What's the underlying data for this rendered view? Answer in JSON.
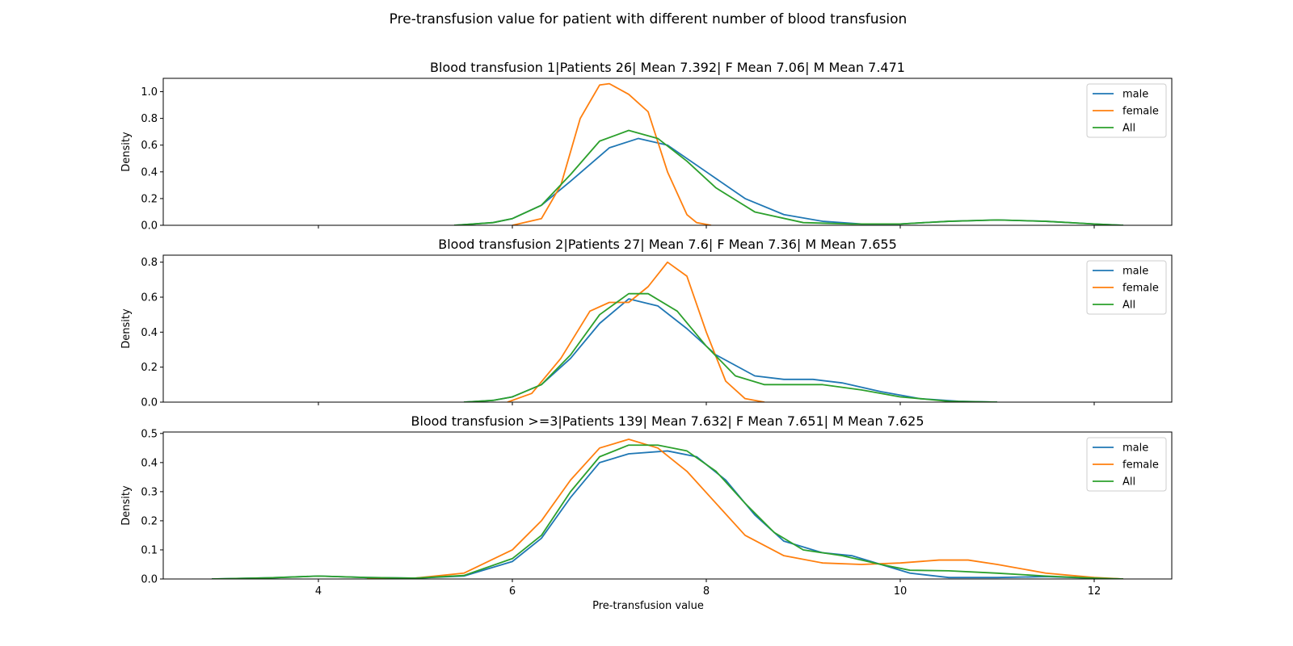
{
  "figure": {
    "suptitle": "Pre-transfusion value for patient with different number of blood transfusion",
    "xlabel": "Pre-transfusion value"
  },
  "colors": {
    "male": "#1f77b4",
    "female": "#ff7f0e",
    "All": "#2ca02c"
  },
  "chart_data": [
    {
      "type": "line",
      "title": "Blood transfusion 1|Patients 26| Mean 7.392| F Mean 7.06| M Mean 7.471",
      "xlabel": "",
      "ylabel": "Density",
      "xlim": [
        2.4,
        12.8
      ],
      "xticks": [
        4,
        6,
        8,
        10,
        12
      ],
      "show_xtick_labels": false,
      "ylim": [
        0,
        1.1
      ],
      "yticks": [
        0.0,
        0.2,
        0.4,
        0.6,
        0.8,
        1.0
      ],
      "ytick_labels": [
        "0.0",
        "0.2",
        "0.4",
        "0.6",
        "0.8",
        "1.0"
      ],
      "legend": "top-right",
      "series": [
        {
          "name": "male",
          "color": "#1f77b4",
          "x": [
            5.4,
            5.8,
            6.0,
            6.3,
            6.6,
            7.0,
            7.3,
            7.6,
            8.0,
            8.4,
            8.8,
            9.2,
            9.6,
            10.0,
            10.5,
            11.0,
            11.5,
            12.0,
            12.3
          ],
          "y": [
            0.0,
            0.02,
            0.05,
            0.15,
            0.33,
            0.58,
            0.65,
            0.6,
            0.4,
            0.2,
            0.08,
            0.03,
            0.01,
            0.01,
            0.03,
            0.04,
            0.03,
            0.01,
            0.0
          ]
        },
        {
          "name": "female",
          "color": "#ff7f0e",
          "x": [
            6.0,
            6.3,
            6.5,
            6.7,
            6.9,
            7.0,
            7.2,
            7.4,
            7.6,
            7.8,
            7.9,
            8.05
          ],
          "y": [
            0.0,
            0.05,
            0.3,
            0.8,
            1.05,
            1.06,
            0.98,
            0.85,
            0.4,
            0.08,
            0.02,
            0.0
          ]
        },
        {
          "name": "All",
          "color": "#2ca02c",
          "x": [
            5.4,
            5.8,
            6.0,
            6.3,
            6.6,
            6.9,
            7.2,
            7.5,
            7.8,
            8.1,
            8.5,
            9.0,
            9.5,
            10.0,
            10.5,
            11.0,
            11.5,
            12.0,
            12.3
          ],
          "y": [
            0.0,
            0.02,
            0.05,
            0.15,
            0.38,
            0.63,
            0.71,
            0.65,
            0.48,
            0.28,
            0.1,
            0.02,
            0.01,
            0.01,
            0.03,
            0.04,
            0.03,
            0.01,
            0.0
          ]
        }
      ]
    },
    {
      "type": "line",
      "title": "Blood transfusion 2|Patients 27| Mean 7.6| F Mean 7.36| M Mean 7.655",
      "xlabel": "",
      "ylabel": "Density",
      "xlim": [
        2.4,
        12.8
      ],
      "xticks": [
        4,
        6,
        8,
        10,
        12
      ],
      "show_xtick_labels": false,
      "ylim": [
        0,
        0.84
      ],
      "yticks": [
        0.0,
        0.2,
        0.4,
        0.6,
        0.8
      ],
      "ytick_labels": [
        "0.0",
        "0.2",
        "0.4",
        "0.6",
        "0.8"
      ],
      "legend": "top-right",
      "series": [
        {
          "name": "male",
          "color": "#1f77b4",
          "x": [
            5.5,
            5.8,
            6.0,
            6.3,
            6.6,
            6.9,
            7.2,
            7.5,
            7.8,
            8.1,
            8.5,
            8.8,
            9.1,
            9.4,
            9.8,
            10.2,
            10.6,
            11.0
          ],
          "y": [
            0.0,
            0.01,
            0.03,
            0.1,
            0.25,
            0.45,
            0.59,
            0.55,
            0.42,
            0.27,
            0.15,
            0.13,
            0.13,
            0.11,
            0.06,
            0.02,
            0.005,
            0.0
          ]
        },
        {
          "name": "female",
          "color": "#ff7f0e",
          "x": [
            5.95,
            6.2,
            6.5,
            6.8,
            7.0,
            7.2,
            7.4,
            7.6,
            7.8,
            8.0,
            8.2,
            8.4,
            8.6
          ],
          "y": [
            0.0,
            0.05,
            0.25,
            0.52,
            0.57,
            0.57,
            0.66,
            0.8,
            0.72,
            0.4,
            0.12,
            0.02,
            0.0
          ]
        },
        {
          "name": "All",
          "color": "#2ca02c",
          "x": [
            5.5,
            5.8,
            6.0,
            6.3,
            6.6,
            6.9,
            7.2,
            7.4,
            7.7,
            8.0,
            8.3,
            8.6,
            8.9,
            9.2,
            9.6,
            10.0,
            10.5,
            11.0
          ],
          "y": [
            0.0,
            0.01,
            0.03,
            0.1,
            0.27,
            0.5,
            0.62,
            0.62,
            0.52,
            0.32,
            0.15,
            0.1,
            0.1,
            0.1,
            0.07,
            0.03,
            0.005,
            0.0
          ]
        }
      ]
    },
    {
      "type": "line",
      "title": "Blood transfusion >=3|Patients 139| Mean 7.632| F Mean 7.651| M Mean 7.625",
      "xlabel": "Pre-transfusion value",
      "ylabel": "Density",
      "xlim": [
        2.4,
        12.8
      ],
      "xticks": [
        4,
        6,
        8,
        10,
        12
      ],
      "xtick_labels": [
        "4",
        "6",
        "8",
        "10",
        "12"
      ],
      "show_xtick_labels": true,
      "ylim": [
        0,
        0.505
      ],
      "yticks": [
        0.0,
        0.1,
        0.2,
        0.3,
        0.4,
        0.5
      ],
      "ytick_labels": [
        "0.0",
        "0.1",
        "0.2",
        "0.3",
        "0.4",
        "0.5"
      ],
      "legend": "top-right",
      "series": [
        {
          "name": "male",
          "color": "#1f77b4",
          "x": [
            2.9,
            3.5,
            4.0,
            4.5,
            5.0,
            5.5,
            6.0,
            6.3,
            6.6,
            6.9,
            7.2,
            7.6,
            7.9,
            8.2,
            8.5,
            8.8,
            9.2,
            9.5,
            9.8,
            10.1,
            10.5,
            11.0,
            11.5,
            12.0,
            12.3
          ],
          "y": [
            0.0,
            0.004,
            0.01,
            0.005,
            0.003,
            0.01,
            0.06,
            0.14,
            0.28,
            0.4,
            0.43,
            0.44,
            0.42,
            0.34,
            0.22,
            0.13,
            0.09,
            0.08,
            0.05,
            0.02,
            0.005,
            0.005,
            0.008,
            0.003,
            0.0
          ]
        },
        {
          "name": "female",
          "color": "#ff7f0e",
          "x": [
            4.5,
            5.0,
            5.5,
            6.0,
            6.3,
            6.6,
            6.9,
            7.2,
            7.5,
            7.8,
            8.1,
            8.4,
            8.8,
            9.2,
            9.6,
            10.0,
            10.4,
            10.7,
            11.0,
            11.5,
            12.0,
            12.3
          ],
          "y": [
            0.0,
            0.003,
            0.02,
            0.1,
            0.2,
            0.34,
            0.45,
            0.48,
            0.45,
            0.37,
            0.26,
            0.15,
            0.08,
            0.055,
            0.05,
            0.055,
            0.065,
            0.065,
            0.05,
            0.02,
            0.005,
            0.0
          ]
        },
        {
          "name": "All",
          "color": "#2ca02c",
          "x": [
            2.9,
            3.5,
            4.0,
            4.5,
            5.0,
            5.5,
            6.0,
            6.3,
            6.6,
            6.9,
            7.2,
            7.5,
            7.8,
            8.1,
            8.4,
            8.7,
            9.0,
            9.4,
            9.8,
            10.1,
            10.5,
            11.0,
            11.5,
            12.0,
            12.3
          ],
          "y": [
            0.0,
            0.004,
            0.01,
            0.005,
            0.003,
            0.012,
            0.07,
            0.15,
            0.3,
            0.42,
            0.46,
            0.46,
            0.44,
            0.37,
            0.26,
            0.16,
            0.1,
            0.08,
            0.05,
            0.03,
            0.028,
            0.02,
            0.01,
            0.003,
            0.0
          ]
        }
      ]
    }
  ]
}
